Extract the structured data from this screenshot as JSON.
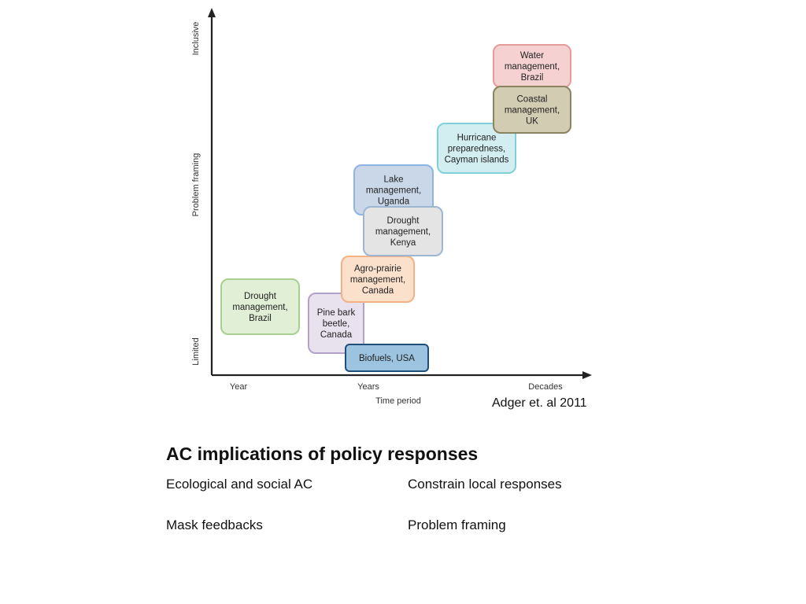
{
  "diagram": {
    "y_axis": {
      "top_label": "Inclusive",
      "middle_label": "Problem framing",
      "bottom_label": "Limited"
    },
    "x_axis": {
      "ticks": [
        "Year",
        "Years",
        "Decades"
      ],
      "title": "Time period"
    },
    "boxes": [
      {
        "id": "drought-brazil",
        "lines": [
          "Drought",
          "management,",
          "Brazil"
        ],
        "fill": "#e1efd6",
        "stroke": "#a9d08e"
      },
      {
        "id": "pine-bark",
        "lines": [
          "Pine bark",
          "beetle,",
          "Canada"
        ],
        "fill": "#e8e2ee",
        "stroke": "#b3a2c7"
      },
      {
        "id": "biofuels",
        "lines": [
          "Biofuels, USA"
        ],
        "fill": "#9cc3e0",
        "stroke": "#1f4e79"
      },
      {
        "id": "agro-prairie",
        "lines": [
          "Agro-prairie",
          "management,",
          "Canada"
        ],
        "fill": "#fbe0cc",
        "stroke": "#f4b183"
      },
      {
        "id": "lake-uganda",
        "lines": [
          "Lake",
          "management,",
          "Uganda"
        ],
        "fill": "#c9d7e8",
        "stroke": "#8eb4e3"
      },
      {
        "id": "drought-kenya",
        "lines": [
          "Drought",
          "management,",
          "Kenya"
        ],
        "fill": "#e4e4e4",
        "stroke": "#9db7d2"
      },
      {
        "id": "hurricane-cayman",
        "lines": [
          "Hurricane",
          "preparedness,",
          "Cayman islands"
        ],
        "fill": "#d3eef1",
        "stroke": "#7fd0d8"
      },
      {
        "id": "coastal-uk",
        "lines": [
          "Coastal",
          "management,",
          "UK"
        ],
        "fill": "#d2ccb2",
        "stroke": "#8a8560"
      },
      {
        "id": "water-brazil",
        "lines": [
          "Water",
          "management,",
          "Brazil"
        ],
        "fill": "#f6d1d1",
        "stroke": "#e69b9b"
      }
    ]
  },
  "citation": "Adger et. al 2011",
  "section": {
    "title": "AC implications of policy responses",
    "points": [
      "Ecological and  social AC",
      "Constrain local responses",
      "Mask feedbacks",
      "Problem framing"
    ]
  }
}
